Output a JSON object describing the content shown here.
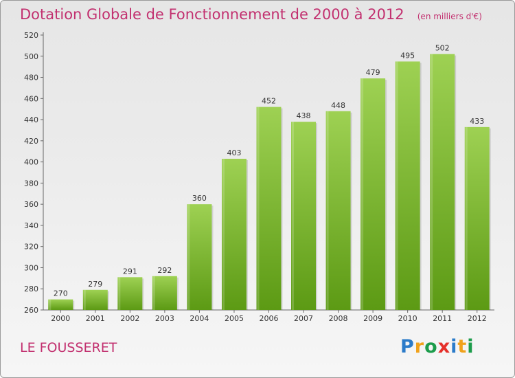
{
  "title": "Dotation Globale de Fonctionnement de 2000 à 2012",
  "unit": "(en milliers d'€)",
  "commune": "LE FOUSSERET",
  "logo": {
    "letters": [
      "P",
      "r",
      "o",
      "x",
      "i",
      "t",
      "i"
    ],
    "colors": [
      "#2b7bc9",
      "#f0a21c",
      "#1c9c4b",
      "#e5302a",
      "#2b7bc9",
      "#f0a21c",
      "#1c9c4b"
    ]
  },
  "colors": {
    "bar_top": "#9ed153",
    "bar_bottom": "#5c9a14",
    "title": "#c2306f"
  },
  "chart_data": {
    "type": "bar",
    "categories": [
      "2000",
      "2001",
      "2002",
      "2003",
      "2004",
      "2005",
      "2006",
      "2007",
      "2008",
      "2009",
      "2010",
      "2011",
      "2012"
    ],
    "values": [
      270,
      279,
      291,
      292,
      360,
      403,
      452,
      438,
      448,
      479,
      495,
      502,
      433
    ],
    "ylim": [
      260,
      520
    ],
    "yticks": [
      260,
      280,
      300,
      320,
      340,
      360,
      380,
      400,
      420,
      440,
      460,
      480,
      500,
      520
    ],
    "grid": false,
    "legend": "none"
  }
}
